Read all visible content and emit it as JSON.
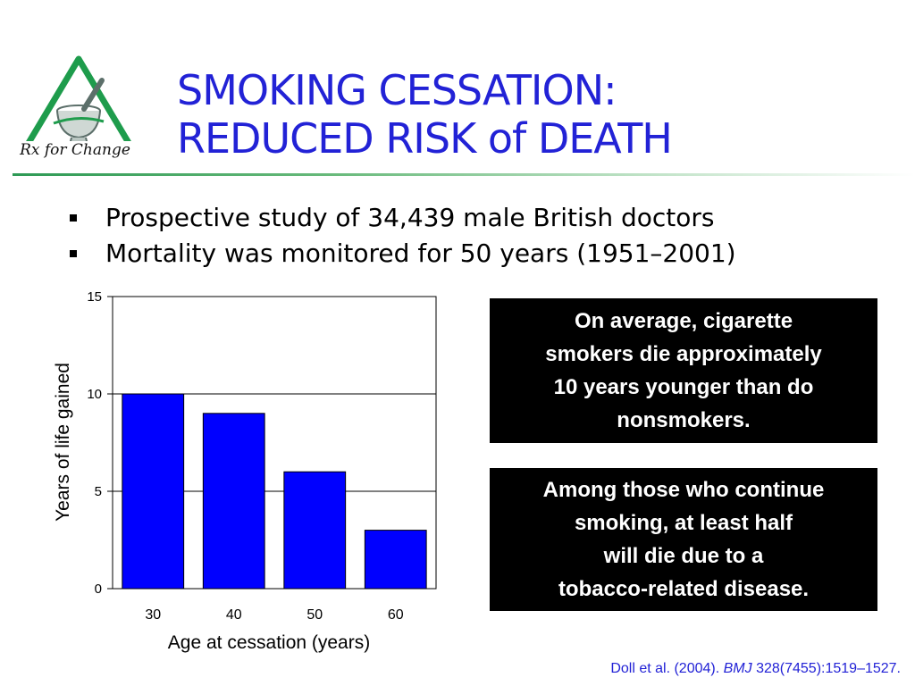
{
  "title": "SMOKING CESSATION:\nREDUCED RISK of DEATH",
  "logo": {
    "text": "Rx for Change"
  },
  "bullets": [
    "Prospective study of 34,439 male British doctors",
    "Mortality was monitored for 50 years (1951–2001)"
  ],
  "chart_data": {
    "type": "bar",
    "categories": [
      "30",
      "40",
      "50",
      "60"
    ],
    "values": [
      10,
      9,
      6,
      3
    ],
    "xlabel": "Age at cessation (years)",
    "ylabel": "Years of life gained",
    "ylim": [
      0,
      15
    ],
    "yticks": [
      "0",
      "5",
      "10",
      "15"
    ],
    "grid": true,
    "bar_color": "#0000ff"
  },
  "callouts": [
    "On average, cigarette\nsmokers die approximately\n10 years younger than do\nnonsmokers.",
    "Among those who continue\nsmoking, at least half\nwill die due to a\ntobacco-related disease."
  ],
  "citation": {
    "authors": "Doll et al. (2004).",
    "journal": "BMJ",
    "ref": "328(7455):1519–1527."
  },
  "colors": {
    "title": "#2222d6",
    "accent_green": "#2e9a55",
    "callout_bg": "#000000"
  }
}
